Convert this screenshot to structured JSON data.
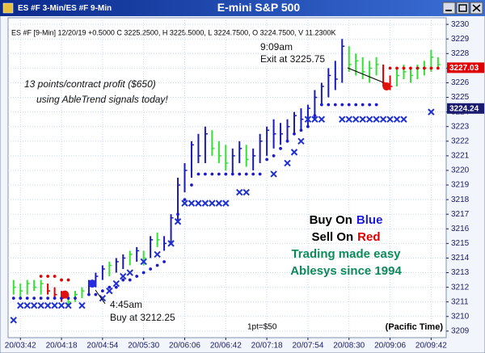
{
  "window": {
    "title": "ES #F 3-Min/ES #F 9-Min"
  },
  "chart_data": {
    "type": "ohlc",
    "title": "E-mini S&P 500",
    "info": "ES #F [9-Min] 12/20/19 +0.5000 C 3225.2500, H 3225.5000, L 3224.7500, O 3224.7500, V 11.2300K",
    "xlim": [
      -0.8,
      63.2
    ],
    "xticks": [
      {
        "value": 1,
        "label": "20/03:42"
      },
      {
        "value": 7,
        "label": "20/04:18"
      },
      {
        "value": 13,
        "label": "20/04:54"
      },
      {
        "value": 19,
        "label": "20/05:30"
      },
      {
        "value": 25,
        "label": "20/06:06"
      },
      {
        "value": 31,
        "label": "20/06:42"
      },
      {
        "value": 37,
        "label": "20/07:18"
      },
      {
        "value": 43,
        "label": "20/07:54"
      },
      {
        "value": 49,
        "label": "20/08:30"
      },
      {
        "value": 55,
        "label": "20/09:06"
      },
      {
        "value": 61,
        "label": "20/09:42"
      }
    ],
    "ylim": [
      3208.55,
      3230.45
    ],
    "yticks": [
      3209,
      3210,
      3211,
      3212,
      3213,
      3214,
      3215,
      3216,
      3217,
      3218,
      3219,
      3220,
      3221,
      3222,
      3223,
      3224,
      3225,
      3226,
      3227,
      3228,
      3229,
      3230
    ],
    "grid": true,
    "palette": {
      "b": "#1a1ab4",
      "g": "#33e033",
      "r": "#e00000"
    },
    "bars": {
      "high": [
        3212.5,
        3212.25,
        3212.5,
        3212.5,
        3212.5,
        3212.25,
        3212,
        3211.75,
        3211.5,
        3211.75,
        3212,
        3212.5,
        3213,
        3213.5,
        3213.75,
        3214,
        3214.25,
        3214.5,
        3214.75,
        3214.5,
        3215.5,
        3215.75,
        3215.5,
        3217,
        3219.5,
        3220.5,
        3222,
        3222.5,
        3223,
        3222.75,
        3222,
        3221.75,
        3221.5,
        3222,
        3221.75,
        3221.5,
        3222.5,
        3223,
        3223.5,
        3223.25,
        3223.5,
        3224,
        3224.25,
        3224.5,
        3225.5,
        3226,
        3227,
        3227.5,
        3229,
        3228.5,
        3228,
        3227.75,
        3227.5,
        3227.75,
        3227.25,
        3226.5,
        3227,
        3227.25,
        3227,
        3227.25,
        3227.5,
        3228.25,
        3227.75
      ],
      "low": [
        3211.5,
        3211.25,
        3211.5,
        3211.75,
        3211.5,
        3211.5,
        3211.25,
        3211,
        3210.75,
        3211,
        3211.25,
        3211.5,
        3212,
        3212.5,
        3212.75,
        3213,
        3213.25,
        3213.5,
        3213.75,
        3213.5,
        3214,
        3214.75,
        3214.5,
        3215,
        3216.5,
        3218.5,
        3219.5,
        3220.5,
        3220.5,
        3221,
        3220.5,
        3220,
        3219.75,
        3220.5,
        3220.25,
        3220,
        3220.5,
        3221,
        3221.5,
        3221.75,
        3222,
        3222.5,
        3222.75,
        3223,
        3223.5,
        3224.5,
        3225,
        3225.5,
        3226,
        3226.75,
        3226.5,
        3226.25,
        3226,
        3226.5,
        3225.75,
        3225.5,
        3225.75,
        3226.25,
        3226,
        3226.25,
        3226.5,
        3226.75,
        3227
      ],
      "close": [
        3212,
        3211.75,
        3212.25,
        3212,
        3212.25,
        3211.75,
        3211.5,
        3211.25,
        3211,
        3211.5,
        3211.75,
        3212.25,
        3212.75,
        3213.25,
        3213.5,
        3213.75,
        3214,
        3214.25,
        3214.5,
        3214,
        3215.25,
        3215.25,
        3215,
        3216.75,
        3219,
        3220,
        3221.75,
        3221,
        3222.5,
        3221.5,
        3221,
        3220.5,
        3221,
        3221.5,
        3220.75,
        3221,
        3222,
        3222.75,
        3222.5,
        3222.5,
        3223,
        3223.75,
        3223.5,
        3224.25,
        3225,
        3225.75,
        3226.5,
        3226.25,
        3228.5,
        3227.25,
        3227.5,
        3226.75,
        3227,
        3227.25,
        3226,
        3225.75,
        3226.5,
        3226.75,
        3226.5,
        3227,
        3227,
        3227.75,
        3227.25
      ],
      "colors": [
        "g",
        "g",
        "g",
        "g",
        "g",
        "r",
        "r",
        "r",
        "g",
        "g",
        "g",
        "b",
        "b",
        "b",
        "g",
        "b",
        "b",
        "g",
        "b",
        "g",
        "b",
        "g",
        "b",
        "b",
        "b",
        "b",
        "b",
        "b",
        "b",
        "g",
        "g",
        "g",
        "b",
        "b",
        "g",
        "b",
        "b",
        "b",
        "b",
        "b",
        "b",
        "b",
        "b",
        "b",
        "b",
        "b",
        "b",
        "b",
        "b",
        "g",
        "g",
        "g",
        "g",
        "g",
        "r",
        "r",
        "g",
        "g",
        "g",
        "g",
        "g",
        "g",
        "g"
      ]
    },
    "overlays": [
      {
        "type": "dot",
        "color": "#1a1ad0",
        "values": [
          3211.25,
          3211.25,
          3211.25,
          3211.25,
          3211.25,
          3211.25,
          3211.25,
          3211.25,
          3211.25,
          3211.25,
          null,
          3211.5,
          3211.5,
          3211.75,
          3212,
          3212,
          3212.5,
          3212.5,
          3212.75,
          3213,
          3213.25,
          3213.5,
          3213.75,
          3215,
          3217,
          3218,
          3219,
          3219.75,
          3219.75,
          3219.75,
          3219.75,
          3219.75,
          3219.75,
          3219.75,
          3219.75,
          3219.75,
          3219.75,
          3220.75,
          3221,
          3221.5,
          3222,
          3222.5,
          3222.75,
          3223,
          3223.75,
          3224.5,
          3224.5,
          3224.5,
          3224.5,
          3224.5,
          3224.5,
          3224.5,
          3224.5,
          3224.5,
          null,
          null,
          null,
          null,
          null,
          null,
          null,
          null,
          null
        ]
      },
      {
        "type": "dot",
        "color": "#e00000",
        "values": [
          null,
          null,
          null,
          null,
          3212.75,
          3212.75,
          3212.75,
          3212.5,
          3212.5,
          null,
          null,
          null,
          null,
          null,
          null,
          null,
          null,
          null,
          null,
          null,
          null,
          null,
          null,
          null,
          null,
          null,
          null,
          null,
          null,
          null,
          null,
          null,
          null,
          null,
          null,
          null,
          null,
          null,
          null,
          null,
          null,
          null,
          null,
          null,
          null,
          null,
          null,
          null,
          null,
          null,
          null,
          null,
          null,
          null,
          null,
          3227,
          3227,
          3227,
          3227,
          3227,
          3227,
          3227,
          3227
        ]
      },
      {
        "type": "x",
        "color": "#2030d0",
        "values": [
          3209.75,
          3210.75,
          3210.75,
          3210.75,
          3210.75,
          3210.75,
          3210.75,
          3210.75,
          3210.75,
          null,
          3210.75,
          null,
          null,
          3211.25,
          3211.75,
          3212.25,
          3212.75,
          3213,
          null,
          3213.75,
          null,
          3214.25,
          null,
          3215,
          3216.5,
          3217.75,
          3217.75,
          3217.75,
          3217.75,
          3217.75,
          3217.75,
          3217.75,
          null,
          3218.5,
          3218.5,
          null,
          null,
          null,
          3219.75,
          null,
          3220.5,
          3221.25,
          3222,
          3223.5,
          3223.5,
          3223.5,
          null,
          null,
          3223.5,
          3223.5,
          3223.5,
          3223.5,
          3223.5,
          3223.5,
          3223.5,
          3223.5,
          3223.5,
          3223.5,
          null,
          null,
          null,
          3224,
          null
        ]
      }
    ],
    "signals": [
      {
        "color": "#e01010",
        "x": 7.5,
        "value": 3211.5
      },
      {
        "color": "#2a2ae0",
        "x": 11.5,
        "value": 3212.25
      },
      {
        "color": "#e01010",
        "x": 54.5,
        "value": 3225.75
      }
    ],
    "price_labels": [
      {
        "value": 3227.03,
        "color": "#e00000"
      },
      {
        "value": 3224.24,
        "color": "#1a1a70"
      }
    ],
    "annotations": {
      "profit_1": "13 points/contract profit ($650)",
      "profit_2": "using AbleTrend signals today!",
      "exit_time": "9:09am",
      "exit_price": "Exit at 3225.75",
      "buy_time": "4:45am",
      "buy_price": "Buy at 3212.25",
      "buy_on": "Buy On",
      "blue": "Blue",
      "sell_on": "Sell On",
      "red": "Red",
      "slogan": "Trading made easy",
      "since": "Ablesys since 1994",
      "point_value": "1pt=$50",
      "timezone": "(Pacific Time)"
    }
  }
}
